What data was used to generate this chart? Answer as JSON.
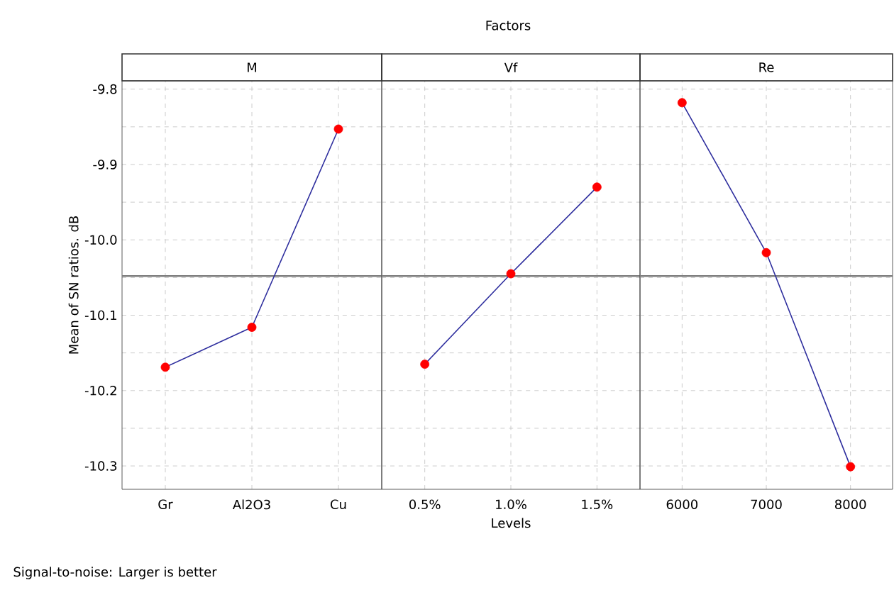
{
  "chart_data": [
    {
      "type": "line",
      "title": "M",
      "ylabel": "Mean of SN ratios. dB",
      "categories": [
        "Gr",
        "Al2O3",
        "Cu"
      ],
      "series": [
        {
          "color": "#2e2e9e",
          "colors": [
            "#ff0000",
            "#ff0000",
            "#ff0000"
          ],
          "values": [
            -10.169,
            -10.116,
            -9.853
          ]
        }
      ],
      "ylim": [
        -10.331,
        -9.789
      ],
      "yticks": [
        {
          "value": -10.3,
          "label": "-10.3"
        },
        {
          "value": -10.25,
          "label": null
        },
        {
          "value": -10.2,
          "label": "-10.2"
        },
        {
          "value": -10.15,
          "label": null
        },
        {
          "value": -10.1,
          "label": "-10.1"
        },
        {
          "value": -10.05,
          "label": null
        },
        {
          "value": -10,
          "label": "-10.0"
        },
        {
          "value": -9.95,
          "label": null
        },
        {
          "value": -9.9,
          "label": "-9.9"
        },
        {
          "value": -9.85,
          "label": null
        },
        {
          "value": -9.8,
          "label": "-9.8"
        }
      ],
      "ref_lines": [
        {
          "axis": "y",
          "value": -10.048,
          "color": "#7f7f7f"
        }
      ],
      "grid": true,
      "marker": "circle",
      "annotations": [
        "Factors",
        "Signal-to-noise: Larger is better"
      ]
    },
    {
      "type": "line",
      "title": "Vf",
      "xlabel": "Levels",
      "categories": [
        "0.5%",
        "1.0%",
        "1.5%"
      ],
      "series": [
        {
          "color": "#2e2e9e",
          "colors": [
            "#ff0000",
            "#ff0000",
            "#ff0000"
          ],
          "values": [
            -10.165,
            -10.045,
            -9.93
          ]
        }
      ],
      "ylim": [
        -10.331,
        -9.789
      ],
      "yticks": [
        {
          "value": -10.3,
          "label": null
        },
        {
          "value": -10.25,
          "label": null
        },
        {
          "value": -10.2,
          "label": null
        },
        {
          "value": -10.15,
          "label": null
        },
        {
          "value": -10.1,
          "label": null
        },
        {
          "value": -10.05,
          "label": null
        },
        {
          "value": -10,
          "label": null
        },
        {
          "value": -9.95,
          "label": null
        },
        {
          "value": -9.9,
          "label": null
        },
        {
          "value": -9.85,
          "label": null
        },
        {
          "value": -9.8,
          "label": null
        }
      ],
      "ref_lines": [
        {
          "axis": "y",
          "value": -10.048,
          "color": "#7f7f7f"
        }
      ],
      "grid": true,
      "marker": "circle",
      "tick_labels": "x"
    },
    {
      "type": "line",
      "title": "Re",
      "categories": [
        "6000",
        "7000",
        "8000"
      ],
      "series": [
        {
          "color": "#2e2e9e",
          "colors": [
            "#ff0000",
            "#ff0000",
            "#ff0000"
          ],
          "values": [
            -9.818,
            -10.017,
            -10.301
          ]
        }
      ],
      "ylim": [
        -10.331,
        -9.789
      ],
      "yticks": [
        {
          "value": -10.3,
          "label": null
        },
        {
          "value": -10.25,
          "label": null
        },
        {
          "value": -10.2,
          "label": null
        },
        {
          "value": -10.15,
          "label": null
        },
        {
          "value": -10.1,
          "label": null
        },
        {
          "value": -10.05,
          "label": null
        },
        {
          "value": -10,
          "label": null
        },
        {
          "value": -9.95,
          "label": null
        },
        {
          "value": -9.9,
          "label": null
        },
        {
          "value": -9.85,
          "label": null
        },
        {
          "value": -9.8,
          "label": null
        }
      ],
      "ref_lines": [
        {
          "axis": "y",
          "value": -10.048,
          "color": "#7f7f7f"
        }
      ],
      "grid": true,
      "marker": "circle",
      "tick_labels": "x"
    }
  ]
}
